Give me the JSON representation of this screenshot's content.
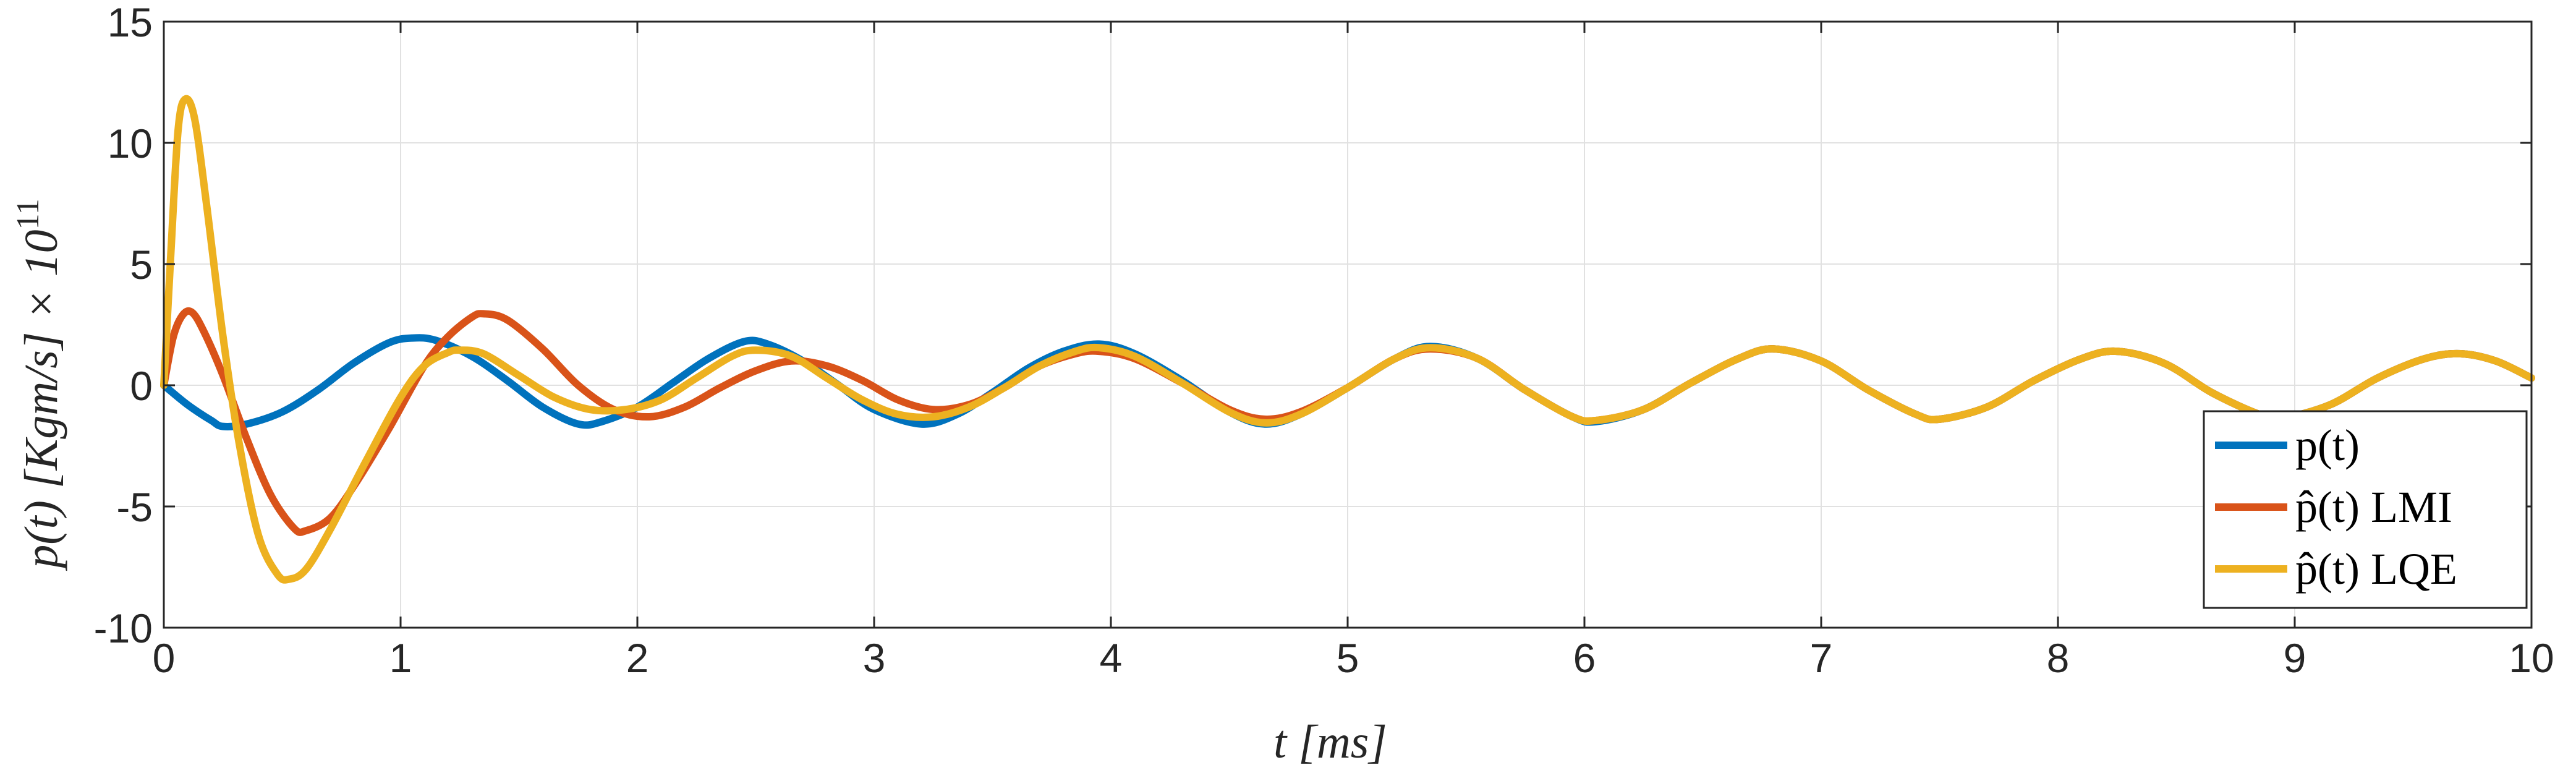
{
  "chart_data": {
    "type": "line",
    "xlabel": "t [ms]",
    "ylabel": "p(t) [Kgm/s] × 10",
    "ylabel_exponent": "11",
    "xlim": [
      0,
      10
    ],
    "ylim": [
      -10,
      15
    ],
    "xticks": [
      "0",
      "1",
      "2",
      "3",
      "4",
      "5",
      "6",
      "7",
      "8",
      "9",
      "10"
    ],
    "yticks": [
      "15",
      "10",
      "5",
      "0",
      "-5",
      "-10"
    ],
    "grid": true,
    "legend_placement": "bottom-right",
    "colors": {
      "p": "#0072BD",
      "lmi": "#D95319",
      "lqe": "#EDB120",
      "grid": "#e1e1e1",
      "axis": "#262626"
    },
    "series": [
      {
        "name": "p(t)",
        "points": [
          [
            0,
            0
          ],
          [
            0.1,
            -0.8
          ],
          [
            0.2,
            -1.45
          ],
          [
            0.25,
            -1.7
          ],
          [
            0.35,
            -1.6
          ],
          [
            0.5,
            -1.1
          ],
          [
            0.65,
            -0.2
          ],
          [
            0.8,
            0.9
          ],
          [
            0.95,
            1.75
          ],
          [
            1.05,
            1.95
          ],
          [
            1.15,
            1.85
          ],
          [
            1.3,
            1.2
          ],
          [
            1.45,
            0.2
          ],
          [
            1.6,
            -0.9
          ],
          [
            1.75,
            -1.6
          ],
          [
            1.85,
            -1.5
          ],
          [
            2.0,
            -0.9
          ],
          [
            2.15,
            0.1
          ],
          [
            2.3,
            1.1
          ],
          [
            2.45,
            1.8
          ],
          [
            2.55,
            1.7
          ],
          [
            2.7,
            1.0
          ],
          [
            2.85,
            0.0
          ],
          [
            3.0,
            -1.0
          ],
          [
            3.2,
            -1.6
          ],
          [
            3.35,
            -1.2
          ],
          [
            3.5,
            -0.3
          ],
          [
            3.65,
            0.7
          ],
          [
            3.8,
            1.4
          ],
          [
            3.95,
            1.7
          ],
          [
            4.1,
            1.3
          ],
          [
            4.3,
            0.2
          ],
          [
            4.5,
            -1.1
          ],
          [
            4.65,
            -1.6
          ],
          [
            4.8,
            -1.2
          ],
          [
            5.0,
            -0.1
          ],
          [
            5.2,
            1.1
          ],
          [
            5.35,
            1.6
          ],
          [
            5.55,
            1.1
          ],
          [
            5.75,
            -0.2
          ],
          [
            5.95,
            -1.3
          ],
          [
            6.05,
            -1.5
          ],
          [
            6.25,
            -1.0
          ],
          [
            6.45,
            0.1
          ],
          [
            6.65,
            1.1
          ],
          [
            6.8,
            1.5
          ],
          [
            7.0,
            1.0
          ],
          [
            7.2,
            -0.2
          ],
          [
            7.4,
            -1.2
          ],
          [
            7.5,
            -1.4
          ],
          [
            7.7,
            -0.9
          ],
          [
            7.9,
            0.2
          ],
          [
            8.1,
            1.1
          ],
          [
            8.25,
            1.4
          ],
          [
            8.45,
            0.9
          ],
          [
            8.65,
            -0.3
          ],
          [
            8.85,
            -1.2
          ],
          [
            8.95,
            -1.35
          ],
          [
            9.15,
            -0.8
          ],
          [
            9.35,
            0.3
          ],
          [
            9.55,
            1.1
          ],
          [
            9.7,
            1.3
          ],
          [
            9.85,
            1.0
          ],
          [
            10.0,
            0.3
          ]
        ]
      },
      {
        "name": "p̂(t) LMI",
        "points": [
          [
            0,
            0
          ],
          [
            0.04,
            2.0
          ],
          [
            0.08,
            2.9
          ],
          [
            0.12,
            3.0
          ],
          [
            0.17,
            2.2
          ],
          [
            0.25,
            0.4
          ],
          [
            0.35,
            -2.2
          ],
          [
            0.45,
            -4.5
          ],
          [
            0.55,
            -5.9
          ],
          [
            0.6,
            -6.0
          ],
          [
            0.7,
            -5.5
          ],
          [
            0.8,
            -4.2
          ],
          [
            0.95,
            -1.8
          ],
          [
            1.1,
            0.8
          ],
          [
            1.2,
            2.0
          ],
          [
            1.3,
            2.8
          ],
          [
            1.35,
            2.95
          ],
          [
            1.45,
            2.7
          ],
          [
            1.6,
            1.5
          ],
          [
            1.75,
            0.0
          ],
          [
            1.9,
            -1.0
          ],
          [
            2.05,
            -1.3
          ],
          [
            2.2,
            -0.9
          ],
          [
            2.35,
            -0.1
          ],
          [
            2.5,
            0.6
          ],
          [
            2.65,
            1.0
          ],
          [
            2.8,
            0.8
          ],
          [
            2.95,
            0.2
          ],
          [
            3.1,
            -0.6
          ],
          [
            3.25,
            -1.0
          ],
          [
            3.4,
            -0.8
          ],
          [
            3.55,
            -0.1
          ],
          [
            3.7,
            0.8
          ],
          [
            3.85,
            1.3
          ],
          [
            3.95,
            1.4
          ],
          [
            4.1,
            1.1
          ],
          [
            4.3,
            0.1
          ],
          [
            4.5,
            -1.0
          ],
          [
            4.65,
            -1.4
          ],
          [
            4.8,
            -1.1
          ],
          [
            5.0,
            -0.1
          ],
          [
            5.2,
            1.1
          ],
          [
            5.35,
            1.5
          ],
          [
            5.55,
            1.1
          ],
          [
            5.75,
            -0.2
          ],
          [
            5.95,
            -1.3
          ],
          [
            6.05,
            -1.45
          ],
          [
            6.25,
            -1.0
          ],
          [
            6.45,
            0.1
          ],
          [
            6.65,
            1.1
          ],
          [
            6.8,
            1.5
          ],
          [
            7.0,
            1.0
          ],
          [
            7.2,
            -0.2
          ],
          [
            7.4,
            -1.2
          ],
          [
            7.5,
            -1.4
          ],
          [
            7.7,
            -0.9
          ],
          [
            7.9,
            0.2
          ],
          [
            8.1,
            1.1
          ],
          [
            8.25,
            1.4
          ],
          [
            8.45,
            0.9
          ],
          [
            8.65,
            -0.3
          ],
          [
            8.85,
            -1.2
          ],
          [
            8.95,
            -1.35
          ],
          [
            9.15,
            -0.8
          ],
          [
            9.35,
            0.3
          ],
          [
            9.55,
            1.1
          ],
          [
            9.7,
            1.3
          ],
          [
            9.85,
            1.0
          ],
          [
            10.0,
            0.3
          ]
        ]
      },
      {
        "name": "p̂(t) LQE",
        "points": [
          [
            0,
            0
          ],
          [
            0.03,
            5.5
          ],
          [
            0.06,
            10.5
          ],
          [
            0.09,
            11.8
          ],
          [
            0.13,
            11.0
          ],
          [
            0.18,
            7.5
          ],
          [
            0.25,
            2.0
          ],
          [
            0.32,
            -2.5
          ],
          [
            0.4,
            -6.2
          ],
          [
            0.48,
            -7.8
          ],
          [
            0.53,
            -8.0
          ],
          [
            0.6,
            -7.6
          ],
          [
            0.7,
            -6.0
          ],
          [
            0.85,
            -3.2
          ],
          [
            1.0,
            -0.5
          ],
          [
            1.1,
            0.8
          ],
          [
            1.2,
            1.35
          ],
          [
            1.25,
            1.45
          ],
          [
            1.35,
            1.3
          ],
          [
            1.5,
            0.4
          ],
          [
            1.65,
            -0.5
          ],
          [
            1.8,
            -1.0
          ],
          [
            1.95,
            -1.0
          ],
          [
            2.1,
            -0.6
          ],
          [
            2.25,
            0.3
          ],
          [
            2.4,
            1.2
          ],
          [
            2.5,
            1.45
          ],
          [
            2.65,
            1.2
          ],
          [
            2.8,
            0.3
          ],
          [
            2.95,
            -0.6
          ],
          [
            3.1,
            -1.2
          ],
          [
            3.25,
            -1.3
          ],
          [
            3.4,
            -0.9
          ],
          [
            3.55,
            -0.1
          ],
          [
            3.7,
            0.8
          ],
          [
            3.85,
            1.4
          ],
          [
            3.95,
            1.55
          ],
          [
            4.1,
            1.2
          ],
          [
            4.3,
            0.1
          ],
          [
            4.5,
            -1.1
          ],
          [
            4.65,
            -1.55
          ],
          [
            4.8,
            -1.2
          ],
          [
            5.0,
            -0.1
          ],
          [
            5.2,
            1.1
          ],
          [
            5.35,
            1.55
          ],
          [
            5.55,
            1.1
          ],
          [
            5.75,
            -0.2
          ],
          [
            5.95,
            -1.3
          ],
          [
            6.05,
            -1.45
          ],
          [
            6.25,
            -1.0
          ],
          [
            6.45,
            0.1
          ],
          [
            6.65,
            1.1
          ],
          [
            6.8,
            1.5
          ],
          [
            7.0,
            1.0
          ],
          [
            7.2,
            -0.2
          ],
          [
            7.4,
            -1.2
          ],
          [
            7.5,
            -1.4
          ],
          [
            7.7,
            -0.9
          ],
          [
            7.9,
            0.2
          ],
          [
            8.1,
            1.1
          ],
          [
            8.25,
            1.4
          ],
          [
            8.45,
            0.9
          ],
          [
            8.65,
            -0.3
          ],
          [
            8.85,
            -1.2
          ],
          [
            8.95,
            -1.35
          ],
          [
            9.15,
            -0.8
          ],
          [
            9.35,
            0.3
          ],
          [
            9.55,
            1.1
          ],
          [
            9.7,
            1.3
          ],
          [
            9.85,
            1.0
          ],
          [
            10.0,
            0.3
          ]
        ]
      }
    ]
  }
}
